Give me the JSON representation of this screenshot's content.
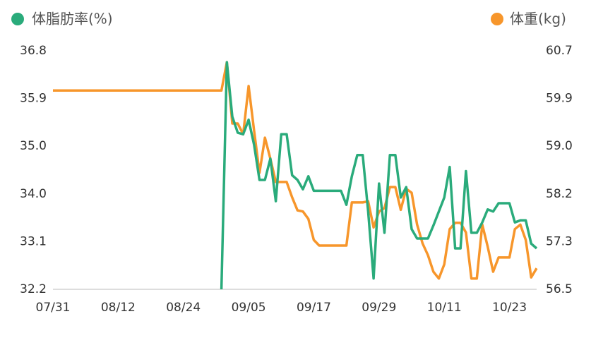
{
  "chart_data": {
    "type": "line",
    "categories": [
      "07/31",
      null,
      null,
      null,
      null,
      null,
      null,
      null,
      null,
      null,
      null,
      null,
      "08/12",
      null,
      null,
      null,
      null,
      null,
      null,
      null,
      null,
      null,
      null,
      null,
      "08/24",
      null,
      null,
      null,
      null,
      null,
      null,
      null,
      null,
      null,
      null,
      null,
      "09/05",
      null,
      null,
      null,
      null,
      null,
      null,
      null,
      null,
      null,
      null,
      null,
      "09/17",
      null,
      null,
      null,
      null,
      null,
      null,
      null,
      null,
      null,
      null,
      null,
      "09/29",
      null,
      null,
      null,
      null,
      null,
      null,
      null,
      null,
      null,
      null,
      null,
      "10/11",
      null,
      null,
      null,
      null,
      null,
      null,
      null,
      null,
      null,
      null,
      null,
      "10/23",
      null,
      null,
      null,
      null,
      null
    ],
    "series": [
      {
        "name": "体脂肪率(%)",
        "color": "#2aab7b",
        "axis": "y",
        "values": [
          null,
          null,
          null,
          null,
          null,
          null,
          null,
          null,
          null,
          null,
          null,
          null,
          null,
          null,
          null,
          null,
          null,
          null,
          null,
          null,
          null,
          null,
          null,
          null,
          null,
          null,
          null,
          null,
          null,
          null,
          null,
          32.2,
          36.58,
          35.53,
          35.22,
          35.19,
          35.47,
          34.99,
          34.31,
          34.31,
          34.72,
          33.9,
          35.19,
          35.19,
          34.4,
          34.31,
          34.13,
          34.38,
          34.1,
          34.1,
          34.1,
          34.1,
          34.1,
          34.1,
          33.83,
          34.38,
          34.79,
          34.79,
          33.7,
          32.41,
          34.24,
          33.29,
          34.79,
          34.79,
          33.97,
          34.17,
          33.36,
          33.18,
          33.18,
          33.18,
          33.43,
          33.7,
          33.97,
          34.56,
          32.99,
          32.99,
          34.48,
          33.29,
          33.29,
          33.49,
          33.74,
          33.7,
          33.86,
          33.86,
          33.86,
          33.49,
          33.53,
          33.53,
          33.08,
          32.99
        ]
      },
      {
        "name": "体重(kg)",
        "color": "#f7962b",
        "axis": "y2",
        "values": [
          60.0,
          60.0,
          60.0,
          60.0,
          60.0,
          60.0,
          60.0,
          60.0,
          60.0,
          60.0,
          60.0,
          60.0,
          60.0,
          60.0,
          60.0,
          60.0,
          60.0,
          60.0,
          60.0,
          60.0,
          60.0,
          60.0,
          60.0,
          60.0,
          60.0,
          60.0,
          60.0,
          60.0,
          60.0,
          60.0,
          60.0,
          60.0,
          60.5,
          59.42,
          59.42,
          59.23,
          60.08,
          59.3,
          58.55,
          59.17,
          58.8,
          58.39,
          58.39,
          58.39,
          58.12,
          57.89,
          57.87,
          57.74,
          57.37,
          57.27,
          57.27,
          57.27,
          57.27,
          57.27,
          57.27,
          58.03,
          58.03,
          58.03,
          58.05,
          57.59,
          57.87,
          57.93,
          58.3,
          58.3,
          57.9,
          58.27,
          58.2,
          57.64,
          57.31,
          57.1,
          56.81,
          56.69,
          56.94,
          57.56,
          57.67,
          57.67,
          57.5,
          56.69,
          56.69,
          57.64,
          57.25,
          56.81,
          57.06,
          57.06,
          57.06,
          57.56,
          57.64,
          57.37,
          56.71,
          56.87
        ]
      }
    ],
    "ylim": [
      32.2,
      36.8
    ],
    "yticks": [
      32.2,
      {
        "value": 33.12,
        "label": "33.1"
      },
      {
        "value": 34.04,
        "label": "34.0"
      },
      {
        "value": 34.96,
        "label": "35.0"
      },
      {
        "value": 35.88,
        "label": "35.9"
      },
      36.8
    ],
    "y2lim": [
      56.5,
      60.7
    ],
    "y2ticks": [
      56.5,
      {
        "value": 57.34,
        "label": "57.3"
      },
      {
        "value": 58.18,
        "label": "58.2"
      },
      {
        "value": 59.02,
        "label": "59.0"
      },
      {
        "value": 59.86,
        "label": "59.9"
      },
      60.7
    ]
  }
}
